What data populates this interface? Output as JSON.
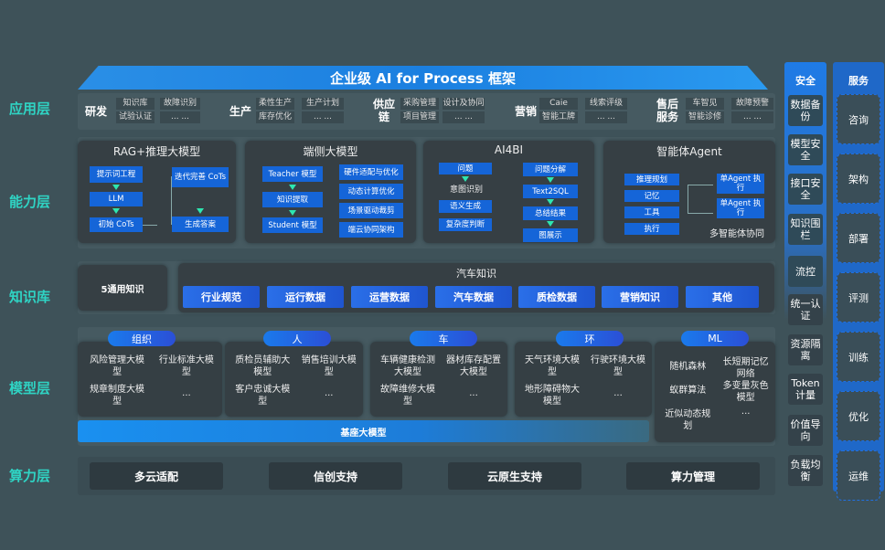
{
  "title": "企业级 AI for Process 框架",
  "layers": {
    "app": "应用层",
    "capability": "能力层",
    "knowledge": "知识库",
    "model": "模型层",
    "compute": "算力层"
  },
  "app_groups": [
    {
      "name": "研发",
      "items": [
        [
          "知识库",
          "试验认证"
        ],
        [
          "故障识别",
          "... ..."
        ]
      ]
    },
    {
      "name": "生产",
      "items": [
        [
          "柔性生产",
          "库存优化"
        ],
        [
          "生产计划",
          "... ..."
        ]
      ]
    },
    {
      "name": "供应链",
      "items": [
        [
          "采购管理",
          "项目管理"
        ],
        [
          "设计及协同",
          "... ..."
        ]
      ]
    },
    {
      "name": "营销",
      "items": [
        [
          "Caie",
          "智能工牌"
        ],
        [
          "线索评级",
          "... ..."
        ]
      ]
    },
    {
      "name": "售后服务",
      "items": [
        [
          "车智见",
          "智能诊修"
        ],
        [
          "故障预警",
          "... ..."
        ]
      ]
    }
  ],
  "capabilities": {
    "rag": {
      "title": "RAG+推理大模型",
      "left": [
        "提示词工程",
        "LLM",
        "初始 CoTs"
      ],
      "right": [
        "迭代完善 CoTs",
        "生成答案"
      ]
    },
    "edge": {
      "title": "端侧大模型",
      "left": [
        "Teacher 模型",
        "知识提取",
        "Student 模型"
      ],
      "right": [
        "硬件适配与优化",
        "动态计算优化",
        "场景驱动裁剪",
        "端云协同架构"
      ]
    },
    "ai4bi": {
      "title": "AI4BI",
      "left_top": "问题",
      "left_label": "意图识别",
      "left": [
        "语义生成",
        "复杂度判断"
      ],
      "right": [
        "问题分解",
        "Text2SQL",
        "总结结果",
        "图展示"
      ]
    },
    "agent": {
      "title": "智能体Agent",
      "left": [
        "推理规划",
        "记忆",
        "工具",
        "执行"
      ],
      "right": [
        "单Agent 执行",
        "单Agent 执行"
      ],
      "footer": "多智能体协同"
    }
  },
  "knowledge": {
    "general": "5通用知识",
    "auto_title": "汽车知识",
    "items": [
      "行业规范",
      "运行数据",
      "运营数据",
      "汽车数据",
      "质检数据",
      "营销知识",
      "其他"
    ]
  },
  "models": [
    {
      "tag": "组织",
      "items": [
        "风险管理大模型",
        "行业标准大模型",
        "规章制度大模型",
        "..."
      ]
    },
    {
      "tag": "人",
      "items": [
        "质检员辅助大模型",
        "销售培训大模型",
        "客户忠诚大模型",
        "..."
      ]
    },
    {
      "tag": "车",
      "items": [
        "车辆健康检测大模型",
        "器材库存配置大模型",
        "故障维修大模型",
        "..."
      ]
    },
    {
      "tag": "环",
      "items": [
        "天气环境大模型",
        "行驶环境大模型",
        "地形障碍物大模型",
        "..."
      ]
    },
    {
      "tag": "ML",
      "items": [
        "随机森林",
        "长短期记忆网络",
        "蚁群算法",
        "多变量灰色模型",
        "近似动态规划",
        "..."
      ]
    }
  ],
  "base_model": "基座大模型",
  "compute": [
    "多云适配",
    "信创支持",
    "云原生支持",
    "算力管理"
  ],
  "security": {
    "title": "安全",
    "items": [
      "数据备份",
      "模型安全",
      "接口安全",
      "知识围栏",
      "流控",
      "统一认证",
      "资源隔离",
      "Token计量",
      "价值导向",
      "负载均衡"
    ]
  },
  "service": {
    "title": "服务",
    "items": [
      "咨询",
      "架构",
      "部署",
      "评测",
      "训练",
      "优化",
      "运维"
    ]
  },
  "colors": {
    "background": "#3e5259",
    "layer_label": "#2fd4c4",
    "accent_blue": "#1565d8",
    "arrow": "#2ee6b0"
  }
}
